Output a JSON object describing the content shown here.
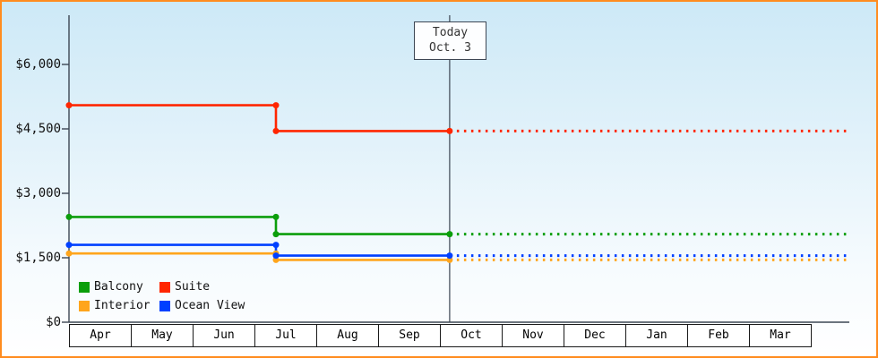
{
  "chart_data": {
    "type": "line",
    "title": "",
    "x_axis": {
      "months": [
        "Apr",
        "May",
        "Jun",
        "Jul",
        "Aug",
        "Sep",
        "Oct",
        "Nov",
        "Dec",
        "Jan",
        "Feb",
        "Mar"
      ],
      "start_frac": 0,
      "end_frac": 12.4
    },
    "y_axis": {
      "tick_labels": [
        "$6,000",
        "$4,500",
        "$3,000",
        "$1,500",
        "$0"
      ],
      "tick_values": [
        6000,
        4500,
        3000,
        1500,
        0
      ],
      "ylim": [
        0,
        7150
      ]
    },
    "today_marker": {
      "line1": "Today",
      "line2": "Oct. 3",
      "month_frac": 6.07
    },
    "series": [
      {
        "name": "Interior",
        "color": "#ffa51c",
        "segments": [
          {
            "start_frac": 0,
            "end_frac": 3.3,
            "value": 1600,
            "style": "solid"
          },
          {
            "start_frac": 3.3,
            "end_frac": 6.07,
            "value": 1450,
            "style": "solid"
          },
          {
            "start_frac": 6.07,
            "end_frac": 12.4,
            "value": 1450,
            "style": "dotted"
          }
        ]
      },
      {
        "name": "Ocean View",
        "color": "#0040ff",
        "segments": [
          {
            "start_frac": 0,
            "end_frac": 3.3,
            "value": 1800,
            "style": "solid"
          },
          {
            "start_frac": 3.3,
            "end_frac": 6.07,
            "value": 1550,
            "style": "solid"
          },
          {
            "start_frac": 6.07,
            "end_frac": 12.4,
            "value": 1550,
            "style": "dotted"
          }
        ]
      },
      {
        "name": "Balcony",
        "color": "#0b9e0b",
        "segments": [
          {
            "start_frac": 0,
            "end_frac": 3.3,
            "value": 2450,
            "style": "solid"
          },
          {
            "start_frac": 3.3,
            "end_frac": 6.07,
            "value": 2050,
            "style": "solid"
          },
          {
            "start_frac": 6.07,
            "end_frac": 12.4,
            "value": 2050,
            "style": "dotted"
          }
        ]
      },
      {
        "name": "Suite",
        "color": "#ff2600",
        "segments": [
          {
            "start_frac": 0,
            "end_frac": 3.3,
            "value": 5050,
            "style": "solid"
          },
          {
            "start_frac": 3.3,
            "end_frac": 6.07,
            "value": 4450,
            "style": "solid"
          },
          {
            "start_frac": 6.07,
            "end_frac": 12.4,
            "value": 4450,
            "style": "dotted"
          }
        ]
      }
    ],
    "legend": [
      {
        "label": "Balcony",
        "color": "#0b9e0b"
      },
      {
        "label": "Suite",
        "color": "#ff2600"
      },
      {
        "label": "Interior",
        "color": "#ffa51c"
      },
      {
        "label": "Ocean View",
        "color": "#0040ff"
      }
    ],
    "colors": {
      "axis": "#3c4653",
      "frame_border": "#ff8c1f",
      "background_top": "#cde9f7",
      "background_bottom": "#ffffff"
    }
  }
}
